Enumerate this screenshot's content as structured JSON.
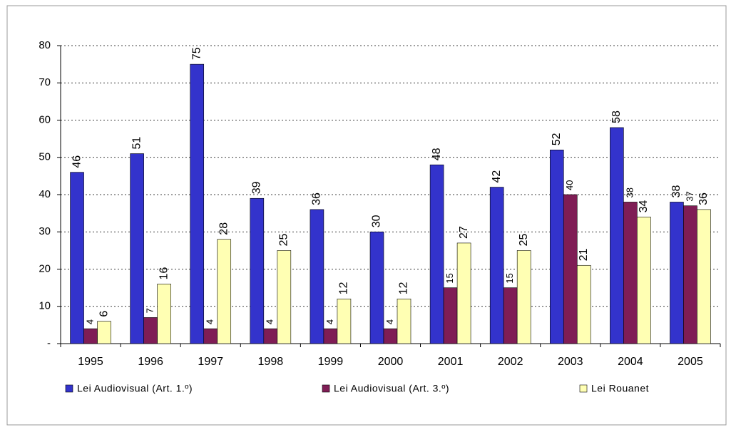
{
  "chart_data": {
    "type": "bar",
    "categories": [
      "1995",
      "1996",
      "1997",
      "1998",
      "1999",
      "2000",
      "2001",
      "2002",
      "2003",
      "2004",
      "2005"
    ],
    "series": [
      {
        "name": "Lei Audiovisual (Art. 1.º)",
        "color": "#3333cc",
        "values": [
          46,
          51,
          75,
          39,
          36,
          30,
          48,
          42,
          52,
          58,
          38
        ]
      },
      {
        "name": "Lei Audiovisual (Art. 3.º)",
        "color": "#7f1d55",
        "values": [
          4,
          7,
          4,
          4,
          4,
          4,
          15,
          15,
          40,
          38,
          37
        ]
      },
      {
        "name": "Lei Rouanet",
        "color": "#ffffb3",
        "values": [
          6,
          16,
          28,
          25,
          12,
          12,
          27,
          25,
          21,
          34,
          36
        ]
      }
    ],
    "ylim": [
      0,
      80
    ],
    "yticks": [
      {
        "value": 0,
        "label": "-"
      },
      10,
      20,
      30,
      40,
      50,
      60,
      70,
      80
    ],
    "grid": true,
    "legend": "bottom"
  }
}
